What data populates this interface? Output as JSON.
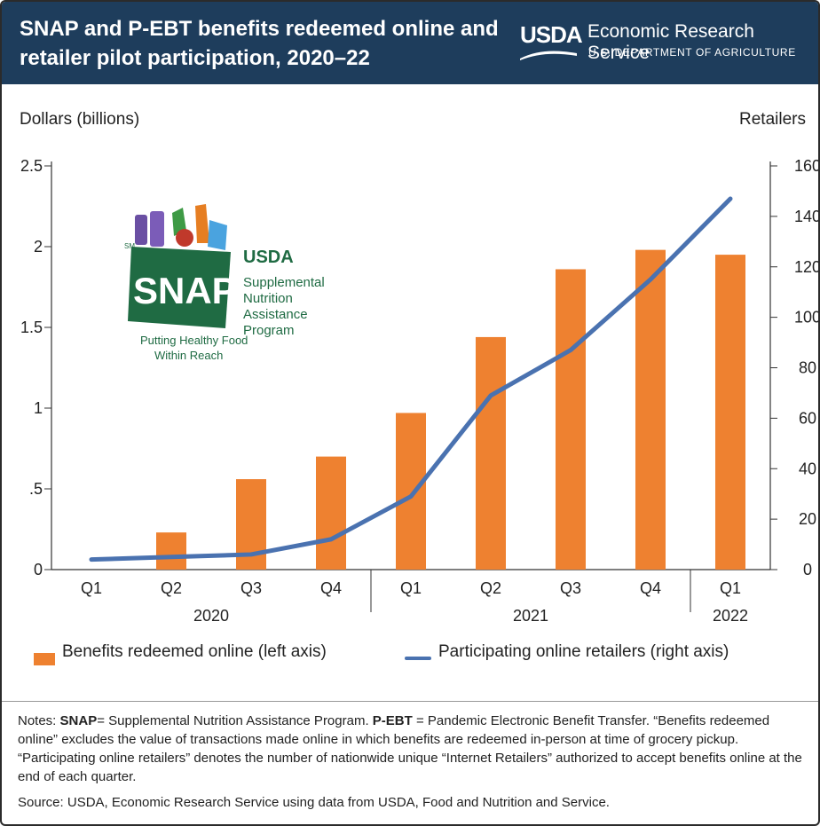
{
  "header": {
    "title": "SNAP and P-EBT benefits redeemed online and retailer pilot participation, 2020–22",
    "logo_text": "USDA",
    "agency_name": "Economic Research Service",
    "department": "U.S. DEPARTMENT OF AGRICULTURE"
  },
  "colors": {
    "header_bg": "#1e3d5c",
    "bar": "#ee8130",
    "line": "#4a72b0"
  },
  "snap_logo": {
    "sm": "SM",
    "usda": "USDA",
    "wordmark": "SNAP",
    "program_lines": [
      "Supplemental",
      "Nutrition",
      "Assistance",
      "Program"
    ],
    "tagline_lines": [
      "Putting Healthy Food",
      "Within Reach"
    ]
  },
  "chart_data": {
    "type": "bar",
    "title": "",
    "categories": [
      "Q1",
      "Q2",
      "Q3",
      "Q4",
      "Q1",
      "Q2",
      "Q3",
      "Q4",
      "Q1"
    ],
    "year_groups": [
      {
        "label": "2020",
        "count": 4
      },
      {
        "label": "2021",
        "count": 4
      },
      {
        "label": "2022",
        "count": 1
      }
    ],
    "ylabel_left": "Dollars (billions)",
    "ylabel_right": "Retailers",
    "ylim_left": [
      0,
      2.5
    ],
    "ylim_right": [
      0,
      160
    ],
    "yticks_left": [
      "0",
      ".5",
      "1",
      "1.5",
      "2",
      "2.5"
    ],
    "yticks_right": [
      "0",
      "20",
      "40",
      "60",
      "80",
      "100",
      "120",
      "140",
      "160"
    ],
    "grid": false,
    "legend_position": "bottom",
    "series": [
      {
        "name": "Benefits redeemed online (left axis)",
        "type": "bar",
        "axis": "left",
        "values": [
          0.0,
          0.23,
          0.56,
          0.7,
          0.97,
          1.44,
          1.86,
          1.98,
          1.95
        ]
      },
      {
        "name": "Participating online retailers (right axis)",
        "type": "line",
        "axis": "right",
        "values": [
          4,
          5,
          6,
          12,
          29,
          69,
          87,
          115,
          147
        ]
      }
    ]
  },
  "notes": {
    "snap_abbr": "SNAP",
    "snap_def": "= Supplemental Nutrition Assistance Program.",
    "pebt_abbr": "P-EBT",
    "pebt_def": "= Pandemic Electronic Benefit Transfer.",
    "line1_prefix": "Notes:",
    "rest": "“Benefits redeemed online” excludes the value of transactions made online in which benefits are redeemed in-person at time of grocery pickup. “Participating online retailers” denotes the number of nationwide unique “Internet Retailers” authorized to accept benefits online at the end of each quarter."
  },
  "source": "Source: USDA, Economic Research Service using data from USDA, Food and Nutrition and Service."
}
